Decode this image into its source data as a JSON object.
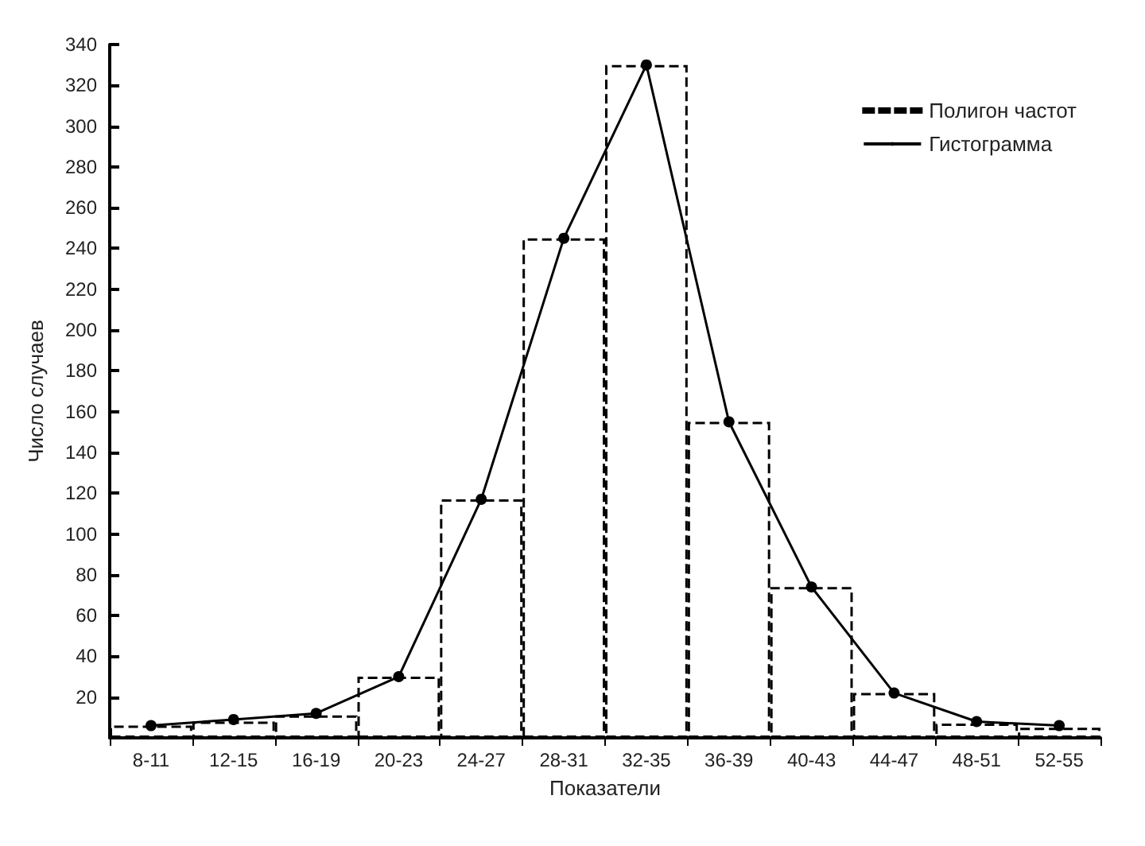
{
  "chart_data": {
    "type": "bar",
    "xlabel": "Показатели",
    "ylabel": "Число случаев",
    "categories": [
      "8-11",
      "12-15",
      "16-19",
      "20-23",
      "24-27",
      "28-31",
      "32-35",
      "36-39",
      "40-43",
      "44-47",
      "48-51",
      "52-55"
    ],
    "series": [
      {
        "name": "Полигон частот",
        "color": "#000000",
        "line_style": "dashed",
        "values": [
          6,
          8,
          11,
          30,
          117,
          245,
          330,
          155,
          74,
          22,
          7,
          5
        ]
      },
      {
        "name": "Гистограмма",
        "type": "line",
        "color": "#000000",
        "line_style": "solid",
        "marker": "circle",
        "values": [
          6,
          9,
          12,
          30,
          117,
          245,
          330,
          155,
          74,
          22,
          8,
          6
        ]
      }
    ],
    "ylim": [
      0,
      340
    ],
    "yticks": [
      20,
      40,
      60,
      80,
      100,
      120,
      140,
      160,
      180,
      200,
      220,
      240,
      260,
      280,
      300,
      320,
      340
    ],
    "grid": false,
    "legend": "top right"
  }
}
